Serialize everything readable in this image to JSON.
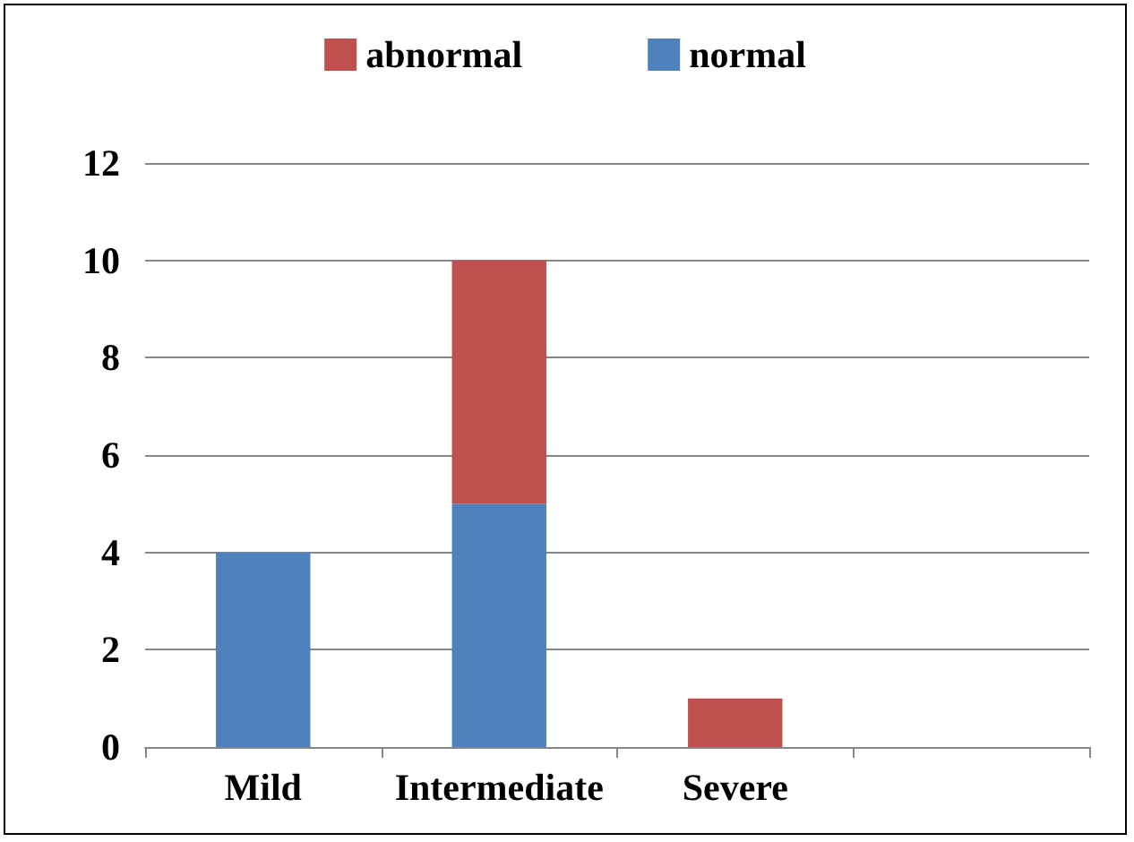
{
  "chart_data": {
    "type": "bar",
    "stacked": true,
    "categories": [
      "Mild",
      "Intermediate",
      "Severe",
      null
    ],
    "series": [
      {
        "name": "normal",
        "color": "#4f81bd",
        "values": [
          4,
          5,
          0,
          null
        ]
      },
      {
        "name": "abnormal",
        "color": "#c0504d",
        "values": [
          0,
          5,
          1,
          null
        ]
      }
    ],
    "ylim": [
      0,
      12
    ],
    "yticks": [
      0,
      2,
      4,
      6,
      8,
      10,
      12
    ],
    "grid": "y",
    "legend": "top"
  }
}
